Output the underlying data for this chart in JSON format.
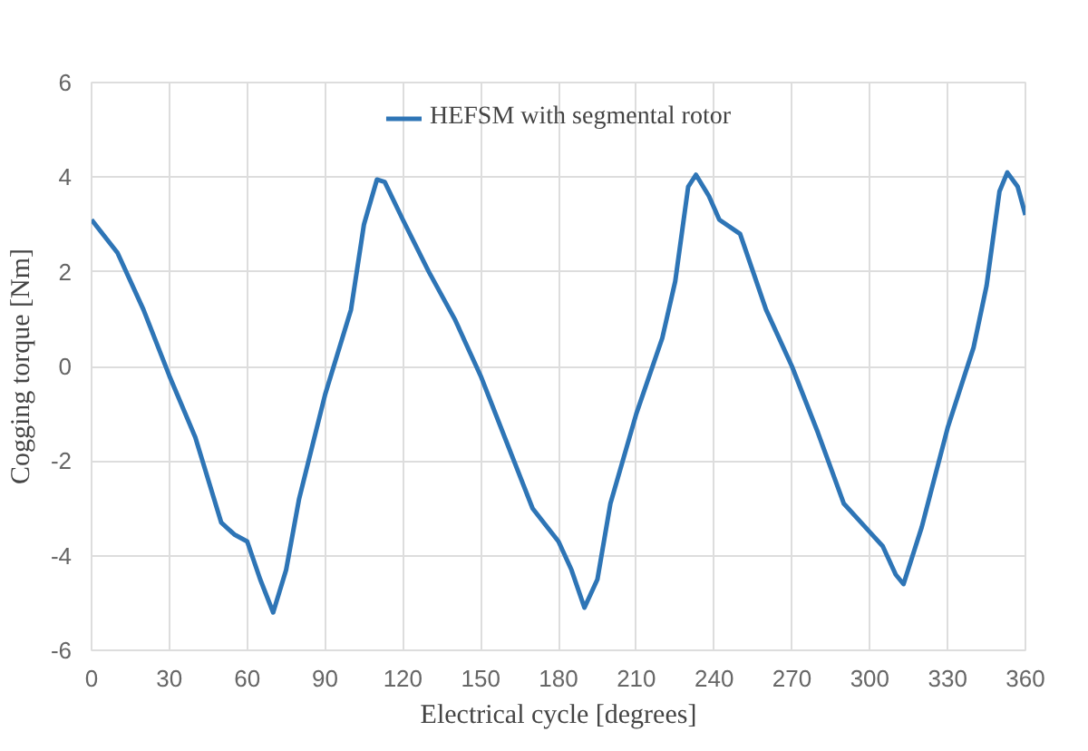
{
  "chart_data": {
    "type": "line",
    "xlabel": "Electrical cycle [degrees]",
    "ylabel": "Cogging torque [Nm]",
    "x": [
      0,
      10,
      20,
      30,
      40,
      50,
      55,
      60,
      65,
      70,
      75,
      80,
      90,
      100,
      105,
      110,
      113,
      120,
      130,
      140,
      150,
      160,
      170,
      180,
      185,
      190,
      195,
      200,
      210,
      220,
      225,
      230,
      233,
      238,
      242,
      250,
      260,
      270,
      280,
      290,
      300,
      305,
      310,
      313,
      320,
      330,
      340,
      345,
      350,
      353,
      357,
      360
    ],
    "series": [
      {
        "name": "HEFSM with segmental rotor",
        "color": "#2e75b6",
        "values": [
          3.1,
          2.4,
          1.2,
          -0.2,
          -1.5,
          -3.3,
          -3.55,
          -3.7,
          -4.5,
          -5.2,
          -4.3,
          -2.8,
          -0.6,
          1.2,
          3.0,
          3.95,
          3.9,
          3.1,
          2.0,
          1.0,
          -0.2,
          -1.6,
          -3.0,
          -3.7,
          -4.3,
          -5.1,
          -4.5,
          -2.9,
          -1.0,
          0.6,
          1.8,
          3.8,
          4.05,
          3.6,
          3.1,
          2.8,
          1.2,
          0.0,
          -1.4,
          -2.9,
          -3.5,
          -3.8,
          -4.4,
          -4.6,
          -3.4,
          -1.3,
          0.4,
          1.7,
          3.7,
          4.1,
          3.8,
          3.2
        ]
      }
    ],
    "xlim": [
      0,
      360
    ],
    "xticks": [
      0,
      30,
      60,
      90,
      120,
      150,
      180,
      210,
      240,
      270,
      300,
      330,
      360
    ],
    "ylim": [
      -6,
      6
    ],
    "yticks": [
      -6,
      -4,
      -2,
      0,
      2,
      4,
      6
    ],
    "grid": true,
    "legend": "top",
    "marker": "none",
    "line_style": "solid"
  }
}
